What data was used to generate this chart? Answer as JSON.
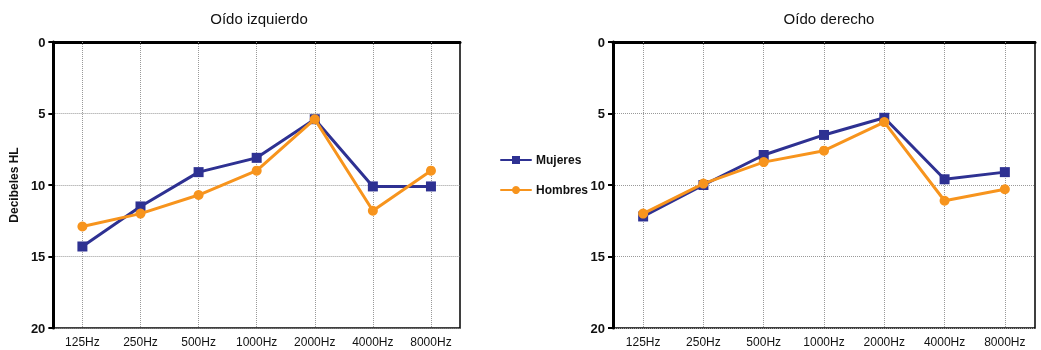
{
  "chart_data": [
    {
      "type": "line",
      "title": "Oído izquierdo",
      "ylabel": "Decibeles HL",
      "categories": [
        "125Hz",
        "250Hz",
        "500Hz",
        "1000Hz",
        "2000Hz",
        "4000Hz",
        "8000Hz"
      ],
      "series": [
        {
          "name": "Mujeres",
          "color": "#2e3192",
          "marker": "square",
          "values": [
            14.3,
            11.5,
            9.1,
            8.1,
            5.4,
            10.1,
            10.1
          ]
        },
        {
          "name": "Hombres",
          "color": "#f7941d",
          "marker": "circle",
          "values": [
            12.9,
            12.0,
            10.7,
            9.0,
            5.4,
            11.8,
            9.0
          ]
        }
      ],
      "ylim": [
        20,
        0
      ],
      "yticks": [
        0,
        5,
        10,
        15,
        20
      ],
      "grid": true,
      "legend": "right",
      "line_style": "solid"
    },
    {
      "type": "line",
      "title": "Oído derecho",
      "categories": [
        "125Hz",
        "250Hz",
        "500Hz",
        "1000Hz",
        "2000Hz",
        "4000Hz",
        "8000Hz"
      ],
      "series": [
        {
          "color": "#2e3192",
          "marker": "square",
          "values": [
            12.2,
            10.0,
            7.9,
            6.5,
            5.3,
            9.6,
            9.1
          ]
        },
        {
          "color": "#f7941d",
          "marker": "circle",
          "values": [
            12.0,
            9.9,
            8.4,
            7.6,
            5.6,
            11.1,
            10.3
          ]
        }
      ],
      "ylim": [
        20,
        0
      ],
      "yticks": [
        0,
        5,
        10,
        15,
        20
      ],
      "grid": true,
      "legend": false,
      "line_style": "solid"
    }
  ]
}
